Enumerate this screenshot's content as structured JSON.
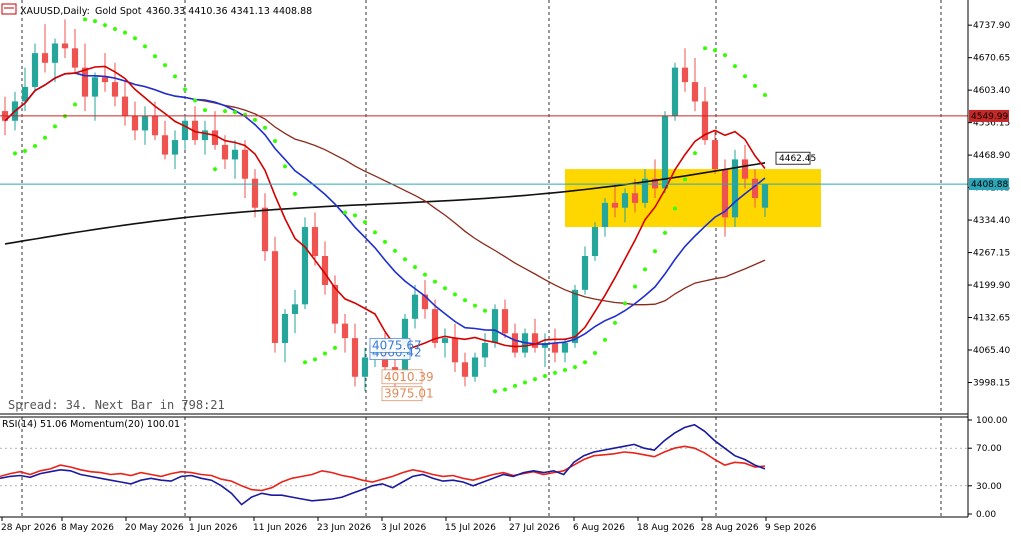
{
  "header": {
    "symbol": "XAUUSD,Daily:",
    "description": "Gold Spot",
    "ohlc": "4360.33 4410.36 4341.13 4408.88"
  },
  "spread_text": "Spread: 34. Next Bar in 798:21",
  "indicator_label": "RSI(14) 51.06 Momentum(20) 100.01",
  "colors": {
    "bull": "#26a69a",
    "bear": "#ef5350",
    "ma_fast": "#d40000",
    "ma_mid": "#1f2fcf",
    "ma_slow": "#8b2a1a",
    "ma_long": "#111111",
    "sar": "#33ff00",
    "box": "#ffd700",
    "rsi": "#e8231a",
    "momentum": "#1a1aa0"
  },
  "chart_data": [
    {
      "type": "candlestick",
      "x_labels": [
        "28 Apr 2026",
        "8 May 2026",
        "20 May 2026",
        "1 Jun 2026",
        "11 Jun 2026",
        "23 Jun 2026",
        "3 Jul 2026",
        "15 Jul 2026",
        "27 Jul 2026",
        "6 Aug 2026",
        "18 Aug 2026",
        "28 Aug 2026",
        "9 Sep 2026"
      ],
      "y_ticks": [
        "4737.90",
        "4670.65",
        "4603.40",
        "4536.15",
        "4468.90",
        "4401.65",
        "4334.40",
        "4267.15",
        "4199.90",
        "4132.65",
        "4065.40",
        "3998.15"
      ],
      "ylim": [
        3935,
        4790
      ],
      "price_labels": {
        "level_red": "4549.99",
        "level_current": "4408.88",
        "ma_label": "4462.45",
        "low_labels": [
          "4060.42",
          "4075.67",
          "4010.39",
          "3975.01"
        ]
      },
      "candles": [
        [
          4560,
          4590,
          4510,
          4540
        ],
        [
          4540,
          4600,
          4520,
          4580
        ],
        [
          4580,
          4650,
          4560,
          4610
        ],
        [
          4610,
          4700,
          4600,
          4680
        ],
        [
          4680,
          4740,
          4640,
          4660
        ],
        [
          4660,
          4710,
          4620,
          4700
        ],
        [
          4700,
          4750,
          4670,
          4690
        ],
        [
          4690,
          4730,
          4640,
          4650
        ],
        [
          4650,
          4700,
          4560,
          4590
        ],
        [
          4590,
          4640,
          4540,
          4630
        ],
        [
          4630,
          4680,
          4600,
          4620
        ],
        [
          4620,
          4660,
          4570,
          4590
        ],
        [
          4590,
          4620,
          4530,
          4550
        ],
        [
          4550,
          4580,
          4500,
          4520
        ],
        [
          4520,
          4570,
          4490,
          4550
        ],
        [
          4550,
          4580,
          4500,
          4510
        ],
        [
          4510,
          4540,
          4460,
          4470
        ],
        [
          4470,
          4520,
          4440,
          4500
        ],
        [
          4500,
          4550,
          4480,
          4540
        ],
        [
          4540,
          4570,
          4490,
          4500
        ],
        [
          4500,
          4540,
          4470,
          4520
        ],
        [
          4520,
          4560,
          4480,
          4490
        ],
        [
          4490,
          4510,
          4440,
          4460
        ],
        [
          4460,
          4500,
          4420,
          4480
        ],
        [
          4480,
          4500,
          4380,
          4420
        ],
        [
          4420,
          4440,
          4340,
          4360
        ],
        [
          4360,
          4390,
          4250,
          4270
        ],
        [
          4270,
          4300,
          4060,
          4080
        ],
        [
          4080,
          4150,
          4040,
          4140
        ],
        [
          4140,
          4190,
          4100,
          4160
        ],
        [
          4160,
          4340,
          4150,
          4320
        ],
        [
          4320,
          4350,
          4240,
          4260
        ],
        [
          4260,
          4290,
          4180,
          4200
        ],
        [
          4200,
          4220,
          4100,
          4120
        ],
        [
          4120,
          4140,
          4060,
          4090
        ],
        [
          4090,
          4120,
          3990,
          4010
        ],
        [
          4010,
          4070,
          3980,
          4050
        ],
        [
          4050,
          4090,
          4030,
          4070
        ],
        [
          4070,
          4100,
          4010,
          4030
        ],
        [
          4030,
          4060,
          3990,
          4020
        ],
        [
          4020,
          4140,
          4010,
          4130
        ],
        [
          4130,
          4200,
          4110,
          4180
        ],
        [
          4180,
          4210,
          4130,
          4150
        ],
        [
          4150,
          4170,
          4070,
          4080
        ],
        [
          4080,
          4110,
          4050,
          4090
        ],
        [
          4090,
          4120,
          4020,
          4040
        ],
        [
          4040,
          4060,
          3990,
          4010
        ],
        [
          4010,
          4060,
          4000,
          4050
        ],
        [
          4050,
          4100,
          4030,
          4080
        ],
        [
          4080,
          4160,
          4070,
          4150
        ],
        [
          4150,
          4170,
          4090,
          4100
        ],
        [
          4100,
          4120,
          4050,
          4060
        ],
        [
          4060,
          4110,
          4050,
          4100
        ],
        [
          4100,
          4130,
          4060,
          4070
        ],
        [
          4070,
          4100,
          4030,
          4080
        ],
        [
          4080,
          4110,
          4040,
          4060
        ],
        [
          4060,
          4090,
          4040,
          4080
        ],
        [
          4080,
          4200,
          4070,
          4190
        ],
        [
          4190,
          4280,
          4180,
          4260
        ],
        [
          4260,
          4330,
          4250,
          4320
        ],
        [
          4320,
          4380,
          4300,
          4370
        ],
        [
          4370,
          4410,
          4340,
          4360
        ],
        [
          4360,
          4400,
          4330,
          4390
        ],
        [
          4390,
          4420,
          4350,
          4370
        ],
        [
          4370,
          4440,
          4360,
          4420
        ],
        [
          4420,
          4460,
          4380,
          4400
        ],
        [
          4400,
          4560,
          4390,
          4550
        ],
        [
          4550,
          4660,
          4540,
          4650
        ],
        [
          4650,
          4690,
          4600,
          4620
        ],
        [
          4620,
          4670,
          4560,
          4580
        ],
        [
          4580,
          4610,
          4490,
          4500
        ],
        [
          4500,
          4520,
          4430,
          4440
        ],
        [
          4440,
          4460,
          4300,
          4340
        ],
        [
          4340,
          4480,
          4320,
          4460
        ],
        [
          4460,
          4490,
          4400,
          4420
        ],
        [
          4420,
          4440,
          4360,
          4380
        ],
        [
          4360,
          4410,
          4341,
          4408.88
        ]
      ]
    },
    {
      "type": "line",
      "name": "",
      "y_ticks": [
        "100.00",
        "70.00",
        "30.00",
        "0.00"
      ],
      "ylim": [
        0,
        100
      ],
      "series": [
        {
          "values": [
            40,
            43,
            45,
            42,
            46,
            48,
            52,
            50,
            47,
            45,
            44,
            42,
            43,
            41,
            44,
            42,
            40,
            43,
            45,
            44,
            42,
            41,
            37,
            35,
            30,
            26,
            25,
            28,
            34,
            38,
            40,
            42,
            46,
            44,
            41,
            39,
            36,
            34,
            37,
            40,
            44,
            47,
            45,
            42,
            40,
            41,
            38,
            36,
            39,
            42,
            44,
            41,
            43,
            45,
            42,
            44,
            46,
            52,
            58,
            62,
            63,
            64,
            66,
            65,
            63,
            61,
            66,
            70,
            72,
            70,
            65,
            58,
            52,
            55,
            54,
            50,
            51
          ]
        },
        {
          "values": [
            38,
            40,
            41,
            39,
            43,
            45,
            47,
            46,
            42,
            40,
            38,
            36,
            34,
            32,
            36,
            38,
            36,
            35,
            40,
            41,
            38,
            36,
            30,
            22,
            10,
            18,
            22,
            20,
            20,
            18,
            16,
            14,
            15,
            16,
            18,
            22,
            26,
            30,
            32,
            28,
            34,
            40,
            42,
            38,
            35,
            36,
            34,
            30,
            34,
            38,
            42,
            40,
            44,
            46,
            44,
            46,
            42,
            55,
            62,
            66,
            68,
            70,
            72,
            74,
            70,
            68,
            78,
            86,
            92,
            95,
            88,
            78,
            70,
            62,
            58,
            52,
            48
          ]
        }
      ]
    }
  ]
}
